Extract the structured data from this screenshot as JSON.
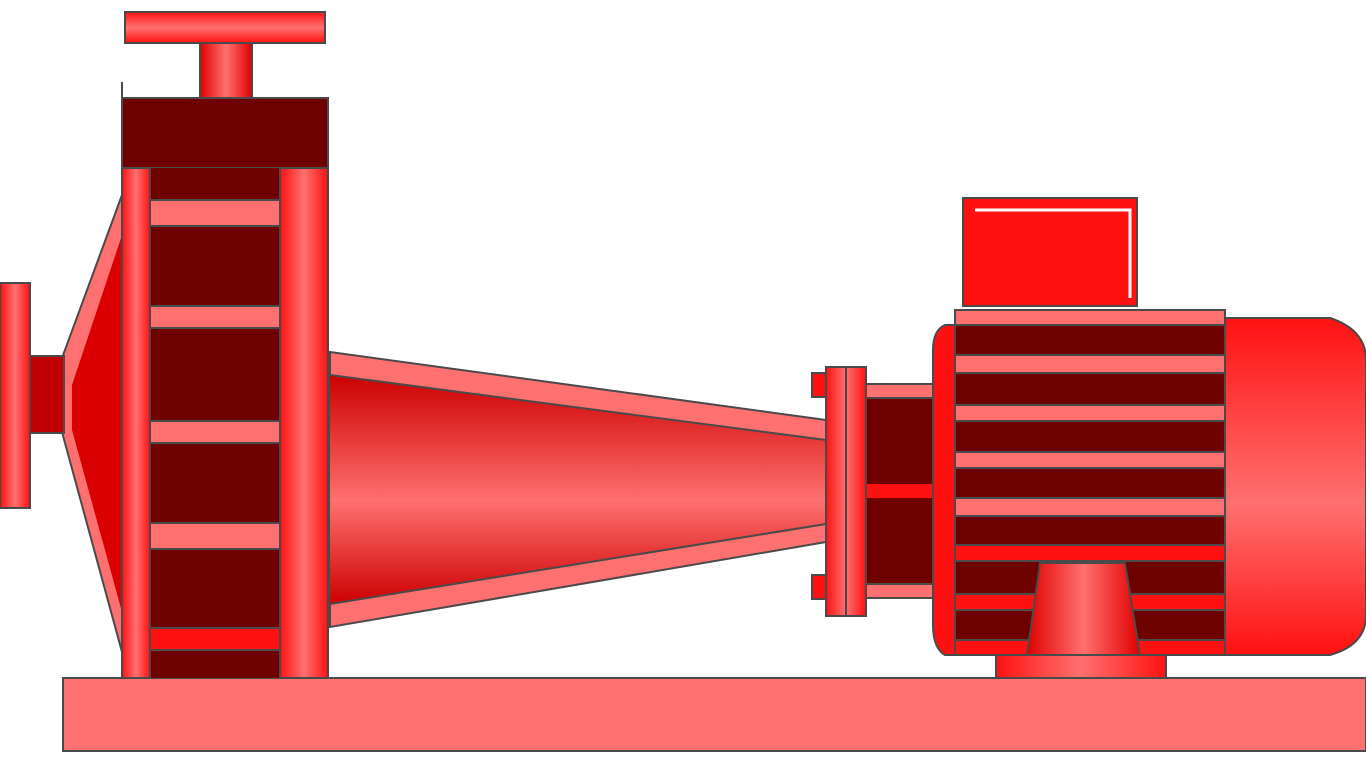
{
  "illustration": {
    "subject": "centrifugal-pump-with-electric-motor",
    "components": [
      "base-plate",
      "outlet-flange",
      "pump-volute-casing",
      "inlet-flange",
      "bearing-frame",
      "shaft-coupling",
      "motor-terminal-box",
      "motor-finned-body",
      "motor-fan-cover",
      "motor-foot"
    ]
  },
  "colors": {
    "red": "#ff1111",
    "red_dark": "#d80000",
    "red_light": "#ff7070",
    "maroon": "#6e0000",
    "outline": "#4a4a4a",
    "white": "#ffffff"
  }
}
